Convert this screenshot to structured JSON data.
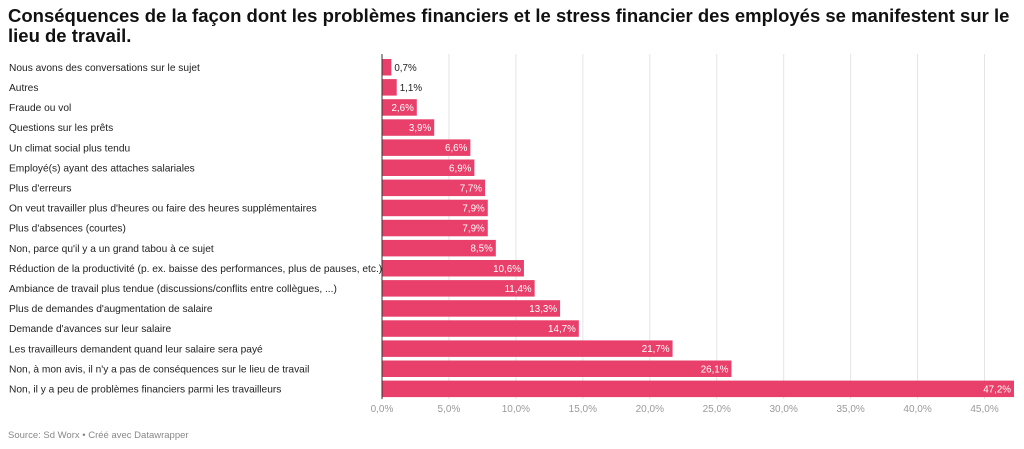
{
  "title": "Conséquences de la façon dont les problèmes financiers et le stress financier des employés se manifestent sur le lieu de travail.",
  "footer": "Source: Sd Worx • Créé avec Datawrapper",
  "colors": {
    "bar": "#e8406a",
    "grid": "#e4e4e4",
    "axis": "#333333",
    "label": "#222222",
    "tick": "#9a9a9a"
  },
  "chart_data": {
    "type": "bar",
    "orientation": "horizontal",
    "categories": [
      "Nous avons des conversations sur le sujet",
      "Autres",
      "Fraude ou vol",
      "Questions sur les prêts",
      "Un climat social plus tendu",
      "Employé(s) ayant des attaches salariales",
      "Plus d'erreurs",
      "On veut travailler plus d'heures ou faire des heures supplémentaires",
      "Plus d'absences (courtes)",
      "Non, parce qu'il y a un grand tabou à ce sujet",
      "Réduction de la productivité (p. ex. baisse des performances, plus de pauses, etc.)",
      "Ambiance de travail plus tendue (discussions/conflits entre collègues, ...)",
      "Plus de demandes d'augmentation de salaire",
      "Demande d'avances sur leur salaire",
      "Les travailleurs demandent quand leur salaire sera payé",
      "Non, à mon avis, il n'y a pas de conséquences sur le lieu de travail",
      "Non, il y a peu de problèmes financiers parmi les travailleurs"
    ],
    "values": [
      0.7,
      1.1,
      2.6,
      3.9,
      6.6,
      6.9,
      7.7,
      7.9,
      7.9,
      8.5,
      10.6,
      11.4,
      13.3,
      14.7,
      21.7,
      26.1,
      47.2
    ],
    "value_labels": [
      "0,7%",
      "1,1%",
      "2,6%",
      "3,9%",
      "6,6%",
      "6,9%",
      "7,7%",
      "7,9%",
      "7,9%",
      "8,5%",
      "10,6%",
      "11,4%",
      "13,3%",
      "14,7%",
      "21,7%",
      "26,1%",
      "47,2%"
    ],
    "x_ticks": [
      0,
      5,
      10,
      15,
      20,
      25,
      30,
      35,
      40,
      45
    ],
    "x_tick_labels": [
      "0,0%",
      "5,0%",
      "10,0%",
      "15,0%",
      "20,0%",
      "25,0%",
      "30,0%",
      "35,0%",
      "40,0%",
      "45,0%"
    ],
    "xlim": [
      0,
      47.2
    ],
    "grid": true
  }
}
